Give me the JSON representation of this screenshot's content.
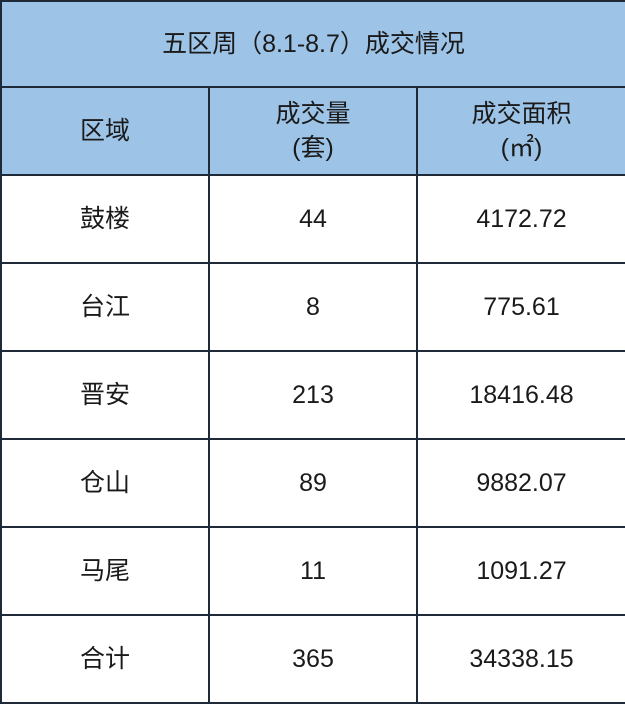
{
  "title": "五区周（8.1-8.7）成交情况",
  "columns": [
    {
      "line1": "区域",
      "line2": ""
    },
    {
      "line1": "成交量",
      "line2": "(套)"
    },
    {
      "line1": "成交面积",
      "line2": "(㎡)"
    }
  ],
  "rows": [
    [
      "鼓楼",
      "44",
      "4172.72"
    ],
    [
      "台江",
      "8",
      "775.61"
    ],
    [
      "晋安",
      "213",
      "18416.48"
    ],
    [
      "仓山",
      "89",
      "9882.07"
    ],
    [
      "马尾",
      "11",
      "1091.27"
    ],
    [
      "合计",
      "365",
      "34338.15"
    ]
  ],
  "colors": {
    "header_bg": "#9dc3e6",
    "border": "#1e2a38"
  }
}
